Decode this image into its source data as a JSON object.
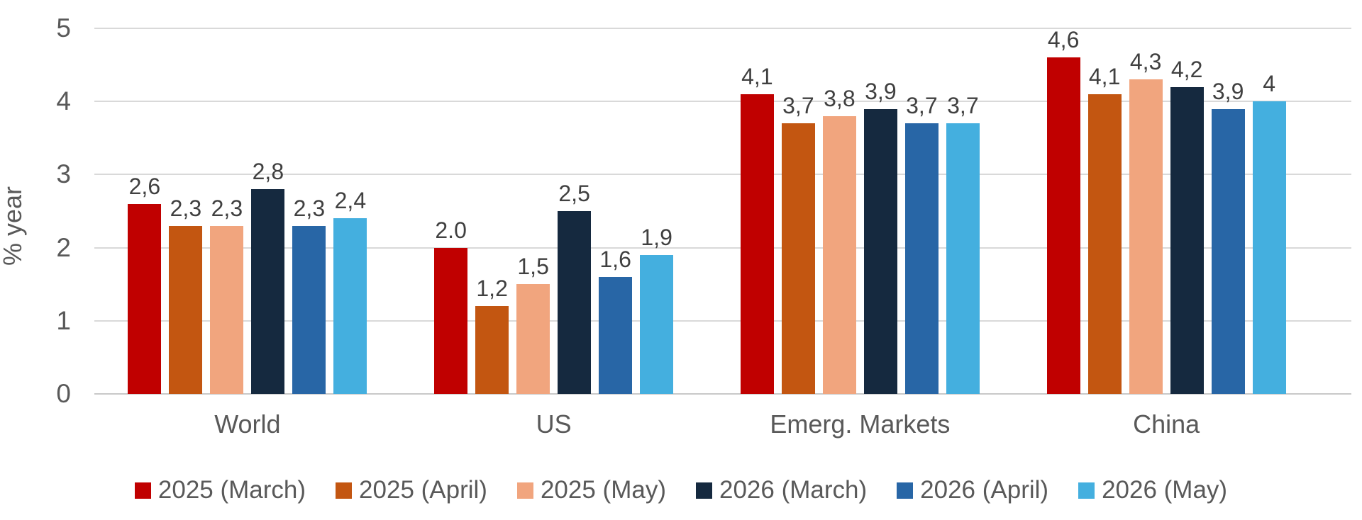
{
  "chart_data": {
    "type": "bar",
    "title": "",
    "ylabel": "% year",
    "xlabel": "",
    "categories": [
      "World",
      "US",
      "Emerg. Markets",
      "China"
    ],
    "series": [
      {
        "name": "2025 (March)",
        "color": "#C00000",
        "values": [
          2.6,
          2.0,
          4.1,
          4.6
        ],
        "labels": [
          "2,6",
          "2.0",
          "4,1",
          "4,6"
        ]
      },
      {
        "name": "2025 (April)",
        "color": "#C35611",
        "values": [
          2.3,
          1.2,
          3.7,
          4.1
        ],
        "labels": [
          "2,3",
          "1,2",
          "3,7",
          "4,1"
        ]
      },
      {
        "name": "2025 (May)",
        "color": "#F1A57E",
        "values": [
          2.3,
          1.5,
          3.8,
          4.3
        ],
        "labels": [
          "2,3",
          "1,5",
          "3,8",
          "4,3"
        ]
      },
      {
        "name": "2026 (March)",
        "color": "#15293F",
        "values": [
          2.8,
          2.5,
          3.9,
          4.2
        ],
        "labels": [
          "2,8",
          "2,5",
          "3,9",
          "4,2"
        ]
      },
      {
        "name": "2026 (April)",
        "color": "#2866A6",
        "values": [
          2.3,
          1.6,
          3.7,
          3.9
        ],
        "labels": [
          "2,3",
          "1,6",
          "3,7",
          "3,9"
        ]
      },
      {
        "name": "2026 (May)",
        "color": "#44AFDF",
        "values": [
          2.4,
          1.9,
          3.7,
          4.0
        ],
        "labels": [
          "2,4",
          "1,9",
          "3,7",
          "4"
        ]
      }
    ],
    "yticks": [
      0,
      1,
      2,
      3,
      4,
      5
    ],
    "ylim": [
      0,
      5
    ],
    "grid": true,
    "gridline_color": "#D9D9D9",
    "legend_position": "bottom",
    "text_colors": {
      "axis": "#595959",
      "data_labels": "#404040"
    }
  }
}
